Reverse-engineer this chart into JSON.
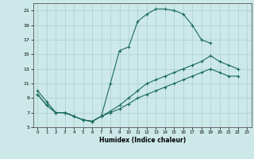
{
  "xlabel": "Humidex (Indice chaleur)",
  "bg_color": "#cce8e8",
  "grid_color": "#aacfcf",
  "line_color": "#1a6b5a",
  "xlim": [
    -0.5,
    23.5
  ],
  "ylim": [
    5,
    22
  ],
  "xticks": [
    0,
    1,
    2,
    3,
    4,
    5,
    6,
    7,
    8,
    9,
    10,
    11,
    12,
    13,
    14,
    15,
    16,
    17,
    18,
    19,
    20,
    21,
    22,
    23
  ],
  "yticks": [
    5,
    7,
    9,
    11,
    13,
    15,
    17,
    19,
    21
  ],
  "curve1_x": [
    0,
    1,
    2,
    3,
    4,
    5,
    6,
    7,
    8,
    9,
    10,
    11,
    12,
    13,
    14,
    15,
    16,
    17,
    18,
    19
  ],
  "curve1_y": [
    10,
    8.5,
    7,
    7,
    6.5,
    6,
    5.8,
    6.5,
    11,
    15.5,
    16,
    19.5,
    20.5,
    21.2,
    21.2,
    21,
    20.5,
    19,
    17,
    16.5
  ],
  "curve2_x": [
    0,
    1,
    2,
    3,
    4,
    5,
    6,
    7,
    8,
    9,
    10,
    11,
    12,
    13,
    14,
    15,
    16,
    17,
    18,
    19,
    20,
    21,
    22
  ],
  "curve2_y": [
    9.5,
    8,
    7,
    7,
    6.5,
    6,
    5.8,
    6.5,
    7.2,
    8,
    9,
    10,
    11,
    11.5,
    12,
    12.5,
    13,
    13.5,
    14,
    14.8,
    14,
    13.5,
    13
  ],
  "curve3_x": [
    0,
    1,
    2,
    3,
    4,
    5,
    6,
    7,
    8,
    9,
    10,
    11,
    12,
    13,
    14,
    15,
    16,
    17,
    18,
    19,
    20,
    21,
    22
  ],
  "curve3_y": [
    9.5,
    8,
    7,
    7,
    6.5,
    6,
    5.8,
    6.5,
    7,
    7.5,
    8.2,
    9,
    9.5,
    10,
    10.5,
    11,
    11.5,
    12,
    12.5,
    13,
    12.5,
    12,
    12
  ]
}
